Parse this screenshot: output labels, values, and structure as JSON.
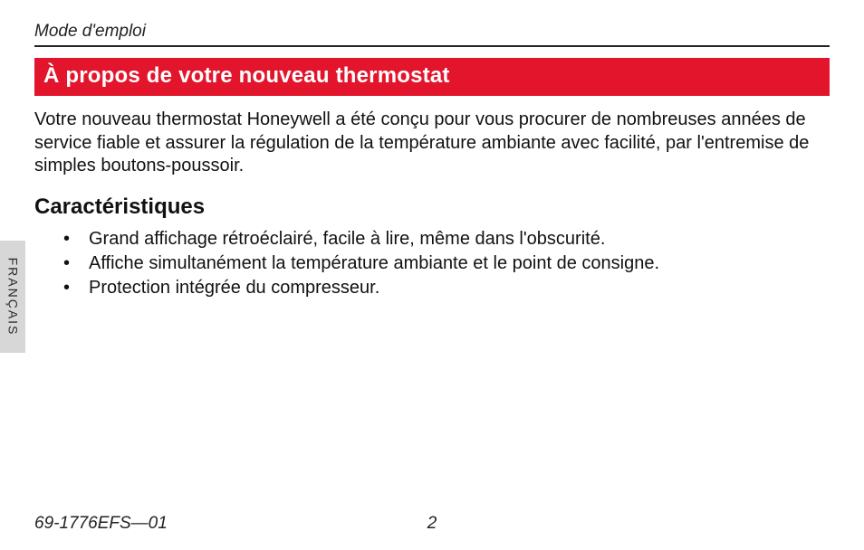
{
  "colors": {
    "title_bar_bg": "#e2152c",
    "title_bar_text": "#ffffff",
    "body_text": "#111111",
    "rule": "#222222",
    "lang_tab_bg": "#d7d7d7",
    "lang_tab_text": "#2b2b2b",
    "page_bg": "#ffffff"
  },
  "typography": {
    "body_family": "Helvetica, Arial, sans-serif",
    "header_label_size_pt": 14,
    "title_bar_size_pt": 18,
    "intro_size_pt": 15,
    "subheading_size_pt": 18,
    "list_size_pt": 15,
    "footer_size_pt": 14
  },
  "header": {
    "label": "Mode d'emploi"
  },
  "title_bar": {
    "text": "À propos de votre nouveau thermostat"
  },
  "intro": {
    "text": "Votre nouveau thermostat Honeywell a été conçu pour vous procurer de nombreuses années de service fiable et assurer la régulation de la température ambiante avec facilité, par l'entremise de simples boutons-poussoir."
  },
  "subheading": {
    "text": "Caractéristiques"
  },
  "features": {
    "items": [
      "Grand affichage rétroéclairé, facile à lire, même dans l'obscurité.",
      "Affiche simultanément la température ambiante et le point de consigne.",
      "Protection intégrée du compresseur."
    ]
  },
  "lang_tab": {
    "text": "FRANÇAIS"
  },
  "footer": {
    "doc_id": "69-1776EFS—01",
    "page_number": "2"
  }
}
